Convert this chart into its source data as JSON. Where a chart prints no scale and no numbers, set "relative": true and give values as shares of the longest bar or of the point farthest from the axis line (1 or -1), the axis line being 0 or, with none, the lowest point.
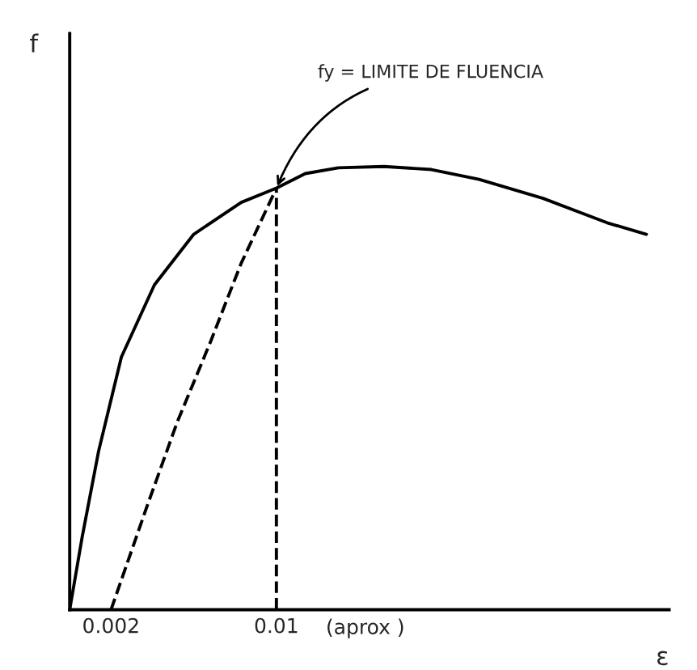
{
  "chart_data": {
    "type": "line",
    "relative": true,
    "xlabel": "ε",
    "ylabel": "f",
    "xlim": [
      0,
      0.029
    ],
    "xticks": [
      {
        "value": 0.002,
        "label": "0.002"
      },
      {
        "value": 0.01,
        "label": "0.01"
      }
    ],
    "ref_lines": [
      {
        "axis": "x",
        "value": 0.01,
        "color": "#000000",
        "line_style": "dashed"
      }
    ],
    "tick_labels": "x",
    "grid": false,
    "legend": false,
    "marker": "none",
    "annotations": [
      {
        "text": "fy = LIMITE DE FLUENCIA",
        "x": 0.01,
        "y": 0.951
      },
      "(aprox )"
    ],
    "series": [
      {
        "color": "#000000",
        "line_style": "solid",
        "x": [
          0,
          0.0006,
          0.0014,
          0.0025,
          0.0041,
          0.006,
          0.0083,
          0.01,
          0.0114,
          0.013,
          0.0152,
          0.0175,
          0.0198,
          0.0229,
          0.026,
          0.0279
        ],
        "values": [
          0,
          0.163,
          0.358,
          0.57,
          0.733,
          0.847,
          0.919,
          0.951,
          0.984,
          0.997,
          1,
          0.993,
          0.971,
          0.928,
          0.873,
          0.847
        ]
      },
      {
        "color": "#000000",
        "line_style": "dashed",
        "x": [
          0.002,
          0.0037,
          0.0052,
          0.0068,
          0.0083,
          0.01
        ],
        "values": [
          0,
          0.228,
          0.423,
          0.603,
          0.782,
          0.951
        ]
      }
    ]
  }
}
